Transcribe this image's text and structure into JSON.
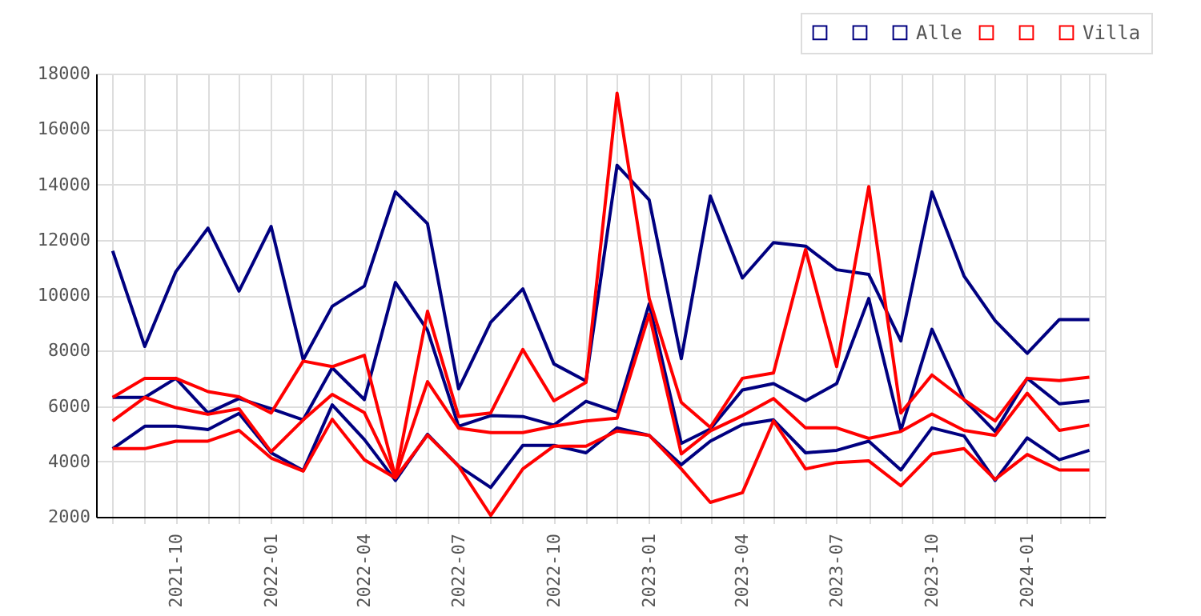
{
  "chart_data": {
    "type": "line",
    "x": [
      "2021-08",
      "2021-09",
      "2021-10",
      "2021-11",
      "2021-12",
      "2022-01",
      "2022-02",
      "2022-03",
      "2022-04",
      "2022-05",
      "2022-06",
      "2022-07",
      "2022-08",
      "2022-09",
      "2022-10",
      "2022-11",
      "2022-12",
      "2023-01",
      "2023-02",
      "2023-03",
      "2023-04",
      "2023-05",
      "2023-06",
      "2023-07",
      "2023-08",
      "2023-09",
      "2023-10",
      "2023-11",
      "2023-12",
      "2024-01",
      "2024-02",
      "2024-03"
    ],
    "series": [
      {
        "color": "#000080",
        "values": [
          11600,
          8150,
          10850,
          12420,
          10150,
          12480,
          7670,
          9600,
          10330,
          13730,
          12580,
          6620,
          9020,
          10230,
          7520,
          6900,
          14690,
          13440,
          7710,
          13580,
          10620,
          11900,
          11770,
          10920,
          10750,
          8350,
          13730,
          10690,
          9080,
          7900,
          9120,
          9120
        ]
      },
      {
        "color": "#000080",
        "values": [
          6310,
          6310,
          7000,
          5750,
          6270,
          5900,
          5500,
          7380,
          6230,
          10460,
          8730,
          5270,
          5650,
          5620,
          5310,
          6170,
          5790,
          9690,
          4650,
          5170,
          6580,
          6810,
          6190,
          6810,
          9880,
          5120,
          8770,
          6230,
          5080,
          7000,
          6080,
          6190
        ]
      },
      {
        "name": "Alle",
        "color": "#000080",
        "values": [
          4460,
          5270,
          5270,
          5150,
          5730,
          4310,
          3670,
          6040,
          4790,
          3310,
          4980,
          3830,
          3060,
          4580,
          4580,
          4310,
          5210,
          4940,
          3880,
          4730,
          5330,
          5500,
          4310,
          4400,
          4730,
          3690,
          5210,
          4920,
          3310,
          4850,
          4060,
          4400
        ]
      },
      {
        "color": "#ff0000",
        "values": [
          6310,
          7000,
          7000,
          6520,
          6330,
          5750,
          7620,
          7420,
          7830,
          3440,
          9420,
          5620,
          5750,
          8040,
          6190,
          6850,
          17290,
          9880,
          6130,
          5230,
          7000,
          7190,
          11650,
          7420,
          13920,
          5750,
          7120,
          6230,
          5460,
          7000,
          6920,
          7040
        ]
      },
      {
        "color": "#ff0000",
        "values": [
          5460,
          6310,
          5940,
          5700,
          5900,
          4350,
          5500,
          6420,
          5760,
          3440,
          6880,
          5200,
          5040,
          5040,
          5270,
          5460,
          5560,
          9310,
          4270,
          5100,
          5650,
          6270,
          5210,
          5210,
          4830,
          5080,
          5710,
          5120,
          4940,
          6460,
          5120,
          5310
        ]
      },
      {
        "name": "Villa",
        "color": "#ff0000",
        "values": [
          4460,
          4460,
          4730,
          4730,
          5120,
          4120,
          3650,
          5520,
          4060,
          3400,
          4950,
          3830,
          2050,
          3730,
          4550,
          4550,
          5100,
          4940,
          3730,
          2520,
          2870,
          5460,
          3730,
          3960,
          4020,
          3120,
          4270,
          4460,
          3350,
          4250,
          3690,
          3690
        ]
      }
    ],
    "xlim": [
      "2021-07-16",
      "2024-03-16"
    ],
    "xticks": [
      {
        "value": "2021-08",
        "label": null
      },
      {
        "value": "2021-09",
        "label": null
      },
      {
        "value": "2021-10",
        "label": "2021-10"
      },
      {
        "value": "2021-11",
        "label": null
      },
      {
        "value": "2021-12",
        "label": null
      },
      {
        "value": "2022-01",
        "label": "2022-01"
      },
      {
        "value": "2022-02",
        "label": null
      },
      {
        "value": "2022-03",
        "label": null
      },
      {
        "value": "2022-04",
        "label": "2022-04"
      },
      {
        "value": "2022-05",
        "label": null
      },
      {
        "value": "2022-06",
        "label": null
      },
      {
        "value": "2022-07",
        "label": "2022-07"
      },
      {
        "value": "2022-08",
        "label": null
      },
      {
        "value": "2022-09",
        "label": null
      },
      {
        "value": "2022-10",
        "label": "2022-10"
      },
      {
        "value": "2022-11",
        "label": null
      },
      {
        "value": "2022-12",
        "label": null
      },
      {
        "value": "2023-01",
        "label": "2023-01"
      },
      {
        "value": "2023-02",
        "label": null
      },
      {
        "value": "2023-03",
        "label": null
      },
      {
        "value": "2023-04",
        "label": "2023-04"
      },
      {
        "value": "2023-05",
        "label": null
      },
      {
        "value": "2023-06",
        "label": null
      },
      {
        "value": "2023-07",
        "label": "2023-07"
      },
      {
        "value": "2023-08",
        "label": null
      },
      {
        "value": "2023-09",
        "label": null
      },
      {
        "value": "2023-10",
        "label": "2023-10"
      },
      {
        "value": "2023-11",
        "label": null
      },
      {
        "value": "2023-12",
        "label": null
      },
      {
        "value": "2024-01",
        "label": "2024-01"
      },
      {
        "value": "2024-02",
        "label": null
      },
      {
        "value": "2024-03",
        "label": null
      }
    ],
    "ylim": [
      2000,
      18000
    ],
    "yticks": [
      2000,
      4000,
      6000,
      8000,
      10000,
      12000,
      14000,
      16000,
      18000
    ],
    "grid": true,
    "legend": "top right",
    "line_style": "solid"
  }
}
